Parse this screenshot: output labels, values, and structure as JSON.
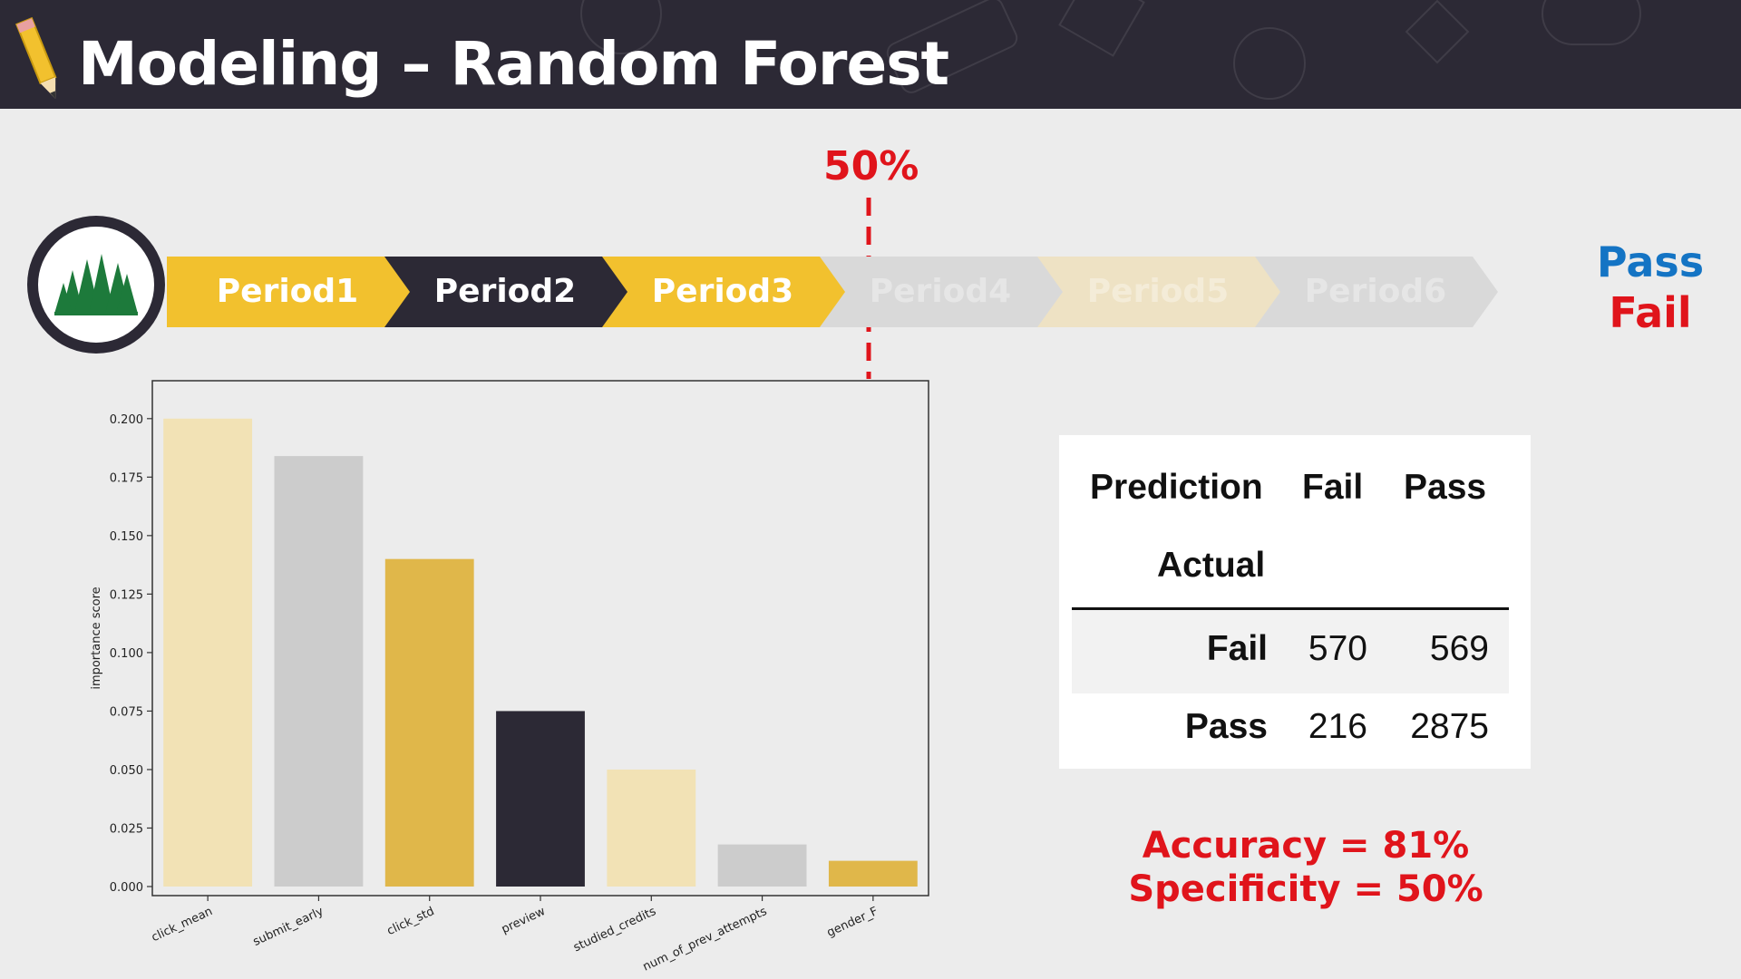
{
  "slide": {
    "title": "Modeling – Random Forest",
    "icons": {
      "header": "pencil-icon",
      "model": "forest-trees-icon"
    }
  },
  "timeline": {
    "milestone_label": "50%",
    "periods": [
      {
        "label": "Period1",
        "color": "#f2c12e",
        "text_color": "#ffffff",
        "faded": false
      },
      {
        "label": "Period2",
        "color": "#2c2935",
        "text_color": "#ffffff",
        "faded": false
      },
      {
        "label": "Period3",
        "color": "#f2c12e",
        "text_color": "#ffffff",
        "faded": false
      },
      {
        "label": "Period4",
        "color": "#d9d9d9",
        "text_color": "#e6e6e6",
        "faded": true
      },
      {
        "label": "Period5",
        "color": "#eee2c4",
        "text_color": "#f4ecd8",
        "faded": true
      },
      {
        "label": "Period6",
        "color": "#d9d9d9",
        "text_color": "#e6e6e6",
        "faded": true
      }
    ],
    "outcomes": {
      "pass": "Pass",
      "fail": "Fail"
    }
  },
  "chart_data": {
    "type": "bar",
    "title": "",
    "xlabel": "",
    "ylabel": "importance score",
    "categories": [
      "click_mean",
      "submit_early",
      "click_std",
      "preview",
      "studied_credits",
      "num_of_prev_attempts",
      "gender_F"
    ],
    "values": [
      0.2,
      0.184,
      0.14,
      0.075,
      0.05,
      0.018,
      0.011
    ],
    "bar_colors": [
      "#f2e2b5",
      "#cccccc",
      "#e0b74a",
      "#2c2935",
      "#f2e2b5",
      "#cccccc",
      "#e0b74a"
    ],
    "ylim": [
      0,
      0.21
    ],
    "yticks": [
      "0.000",
      "0.025",
      "0.050",
      "0.075",
      "0.100",
      "0.125",
      "0.150",
      "0.175",
      "0.200"
    ],
    "grid": false,
    "legend": "none"
  },
  "confusion_matrix": {
    "header_prediction": "Prediction",
    "header_actual": "Actual",
    "columns": [
      "Fail",
      "Pass"
    ],
    "rows": [
      {
        "label": "Fail",
        "values": [
          "570",
          "569"
        ]
      },
      {
        "label": "Pass",
        "values": [
          "216",
          "2875"
        ]
      }
    ]
  },
  "metrics": {
    "accuracy": "Accuracy =  81%",
    "specificity": "Specificity = 50%"
  }
}
